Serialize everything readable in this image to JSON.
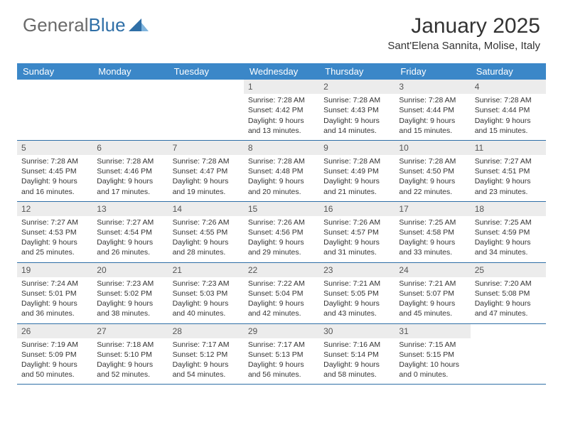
{
  "logo": {
    "part1": "General",
    "part2": "Blue"
  },
  "header": {
    "month": "January 2025",
    "location": "Sant'Elena Sannita, Molise, Italy"
  },
  "colors": {
    "header_bg": "#3b87c8",
    "header_text": "#ffffff",
    "day_number_bg": "#ececec",
    "border": "#2f6fa7",
    "logo_gray": "#6a6a6a",
    "logo_blue": "#2f6fa7",
    "page_bg": "#ffffff"
  },
  "weekdays": [
    "Sunday",
    "Monday",
    "Tuesday",
    "Wednesday",
    "Thursday",
    "Friday",
    "Saturday"
  ],
  "weeks": [
    [
      {
        "empty": true
      },
      {
        "empty": true
      },
      {
        "empty": true
      },
      {
        "day": "1",
        "sunrise": "Sunrise: 7:28 AM",
        "sunset": "Sunset: 4:42 PM",
        "daylight1": "Daylight: 9 hours",
        "daylight2": "and 13 minutes."
      },
      {
        "day": "2",
        "sunrise": "Sunrise: 7:28 AM",
        "sunset": "Sunset: 4:43 PM",
        "daylight1": "Daylight: 9 hours",
        "daylight2": "and 14 minutes."
      },
      {
        "day": "3",
        "sunrise": "Sunrise: 7:28 AM",
        "sunset": "Sunset: 4:44 PM",
        "daylight1": "Daylight: 9 hours",
        "daylight2": "and 15 minutes."
      },
      {
        "day": "4",
        "sunrise": "Sunrise: 7:28 AM",
        "sunset": "Sunset: 4:44 PM",
        "daylight1": "Daylight: 9 hours",
        "daylight2": "and 15 minutes."
      }
    ],
    [
      {
        "day": "5",
        "sunrise": "Sunrise: 7:28 AM",
        "sunset": "Sunset: 4:45 PM",
        "daylight1": "Daylight: 9 hours",
        "daylight2": "and 16 minutes."
      },
      {
        "day": "6",
        "sunrise": "Sunrise: 7:28 AM",
        "sunset": "Sunset: 4:46 PM",
        "daylight1": "Daylight: 9 hours",
        "daylight2": "and 17 minutes."
      },
      {
        "day": "7",
        "sunrise": "Sunrise: 7:28 AM",
        "sunset": "Sunset: 4:47 PM",
        "daylight1": "Daylight: 9 hours",
        "daylight2": "and 19 minutes."
      },
      {
        "day": "8",
        "sunrise": "Sunrise: 7:28 AM",
        "sunset": "Sunset: 4:48 PM",
        "daylight1": "Daylight: 9 hours",
        "daylight2": "and 20 minutes."
      },
      {
        "day": "9",
        "sunrise": "Sunrise: 7:28 AM",
        "sunset": "Sunset: 4:49 PM",
        "daylight1": "Daylight: 9 hours",
        "daylight2": "and 21 minutes."
      },
      {
        "day": "10",
        "sunrise": "Sunrise: 7:28 AM",
        "sunset": "Sunset: 4:50 PM",
        "daylight1": "Daylight: 9 hours",
        "daylight2": "and 22 minutes."
      },
      {
        "day": "11",
        "sunrise": "Sunrise: 7:27 AM",
        "sunset": "Sunset: 4:51 PM",
        "daylight1": "Daylight: 9 hours",
        "daylight2": "and 23 minutes."
      }
    ],
    [
      {
        "day": "12",
        "sunrise": "Sunrise: 7:27 AM",
        "sunset": "Sunset: 4:53 PM",
        "daylight1": "Daylight: 9 hours",
        "daylight2": "and 25 minutes."
      },
      {
        "day": "13",
        "sunrise": "Sunrise: 7:27 AM",
        "sunset": "Sunset: 4:54 PM",
        "daylight1": "Daylight: 9 hours",
        "daylight2": "and 26 minutes."
      },
      {
        "day": "14",
        "sunrise": "Sunrise: 7:26 AM",
        "sunset": "Sunset: 4:55 PM",
        "daylight1": "Daylight: 9 hours",
        "daylight2": "and 28 minutes."
      },
      {
        "day": "15",
        "sunrise": "Sunrise: 7:26 AM",
        "sunset": "Sunset: 4:56 PM",
        "daylight1": "Daylight: 9 hours",
        "daylight2": "and 29 minutes."
      },
      {
        "day": "16",
        "sunrise": "Sunrise: 7:26 AM",
        "sunset": "Sunset: 4:57 PM",
        "daylight1": "Daylight: 9 hours",
        "daylight2": "and 31 minutes."
      },
      {
        "day": "17",
        "sunrise": "Sunrise: 7:25 AM",
        "sunset": "Sunset: 4:58 PM",
        "daylight1": "Daylight: 9 hours",
        "daylight2": "and 33 minutes."
      },
      {
        "day": "18",
        "sunrise": "Sunrise: 7:25 AM",
        "sunset": "Sunset: 4:59 PM",
        "daylight1": "Daylight: 9 hours",
        "daylight2": "and 34 minutes."
      }
    ],
    [
      {
        "day": "19",
        "sunrise": "Sunrise: 7:24 AM",
        "sunset": "Sunset: 5:01 PM",
        "daylight1": "Daylight: 9 hours",
        "daylight2": "and 36 minutes."
      },
      {
        "day": "20",
        "sunrise": "Sunrise: 7:23 AM",
        "sunset": "Sunset: 5:02 PM",
        "daylight1": "Daylight: 9 hours",
        "daylight2": "and 38 minutes."
      },
      {
        "day": "21",
        "sunrise": "Sunrise: 7:23 AM",
        "sunset": "Sunset: 5:03 PM",
        "daylight1": "Daylight: 9 hours",
        "daylight2": "and 40 minutes."
      },
      {
        "day": "22",
        "sunrise": "Sunrise: 7:22 AM",
        "sunset": "Sunset: 5:04 PM",
        "daylight1": "Daylight: 9 hours",
        "daylight2": "and 42 minutes."
      },
      {
        "day": "23",
        "sunrise": "Sunrise: 7:21 AM",
        "sunset": "Sunset: 5:05 PM",
        "daylight1": "Daylight: 9 hours",
        "daylight2": "and 43 minutes."
      },
      {
        "day": "24",
        "sunrise": "Sunrise: 7:21 AM",
        "sunset": "Sunset: 5:07 PM",
        "daylight1": "Daylight: 9 hours",
        "daylight2": "and 45 minutes."
      },
      {
        "day": "25",
        "sunrise": "Sunrise: 7:20 AM",
        "sunset": "Sunset: 5:08 PM",
        "daylight1": "Daylight: 9 hours",
        "daylight2": "and 47 minutes."
      }
    ],
    [
      {
        "day": "26",
        "sunrise": "Sunrise: 7:19 AM",
        "sunset": "Sunset: 5:09 PM",
        "daylight1": "Daylight: 9 hours",
        "daylight2": "and 50 minutes."
      },
      {
        "day": "27",
        "sunrise": "Sunrise: 7:18 AM",
        "sunset": "Sunset: 5:10 PM",
        "daylight1": "Daylight: 9 hours",
        "daylight2": "and 52 minutes."
      },
      {
        "day": "28",
        "sunrise": "Sunrise: 7:17 AM",
        "sunset": "Sunset: 5:12 PM",
        "daylight1": "Daylight: 9 hours",
        "daylight2": "and 54 minutes."
      },
      {
        "day": "29",
        "sunrise": "Sunrise: 7:17 AM",
        "sunset": "Sunset: 5:13 PM",
        "daylight1": "Daylight: 9 hours",
        "daylight2": "and 56 minutes."
      },
      {
        "day": "30",
        "sunrise": "Sunrise: 7:16 AM",
        "sunset": "Sunset: 5:14 PM",
        "daylight1": "Daylight: 9 hours",
        "daylight2": "and 58 minutes."
      },
      {
        "day": "31",
        "sunrise": "Sunrise: 7:15 AM",
        "sunset": "Sunset: 5:15 PM",
        "daylight1": "Daylight: 10 hours",
        "daylight2": "and 0 minutes."
      },
      {
        "empty": true
      }
    ]
  ]
}
